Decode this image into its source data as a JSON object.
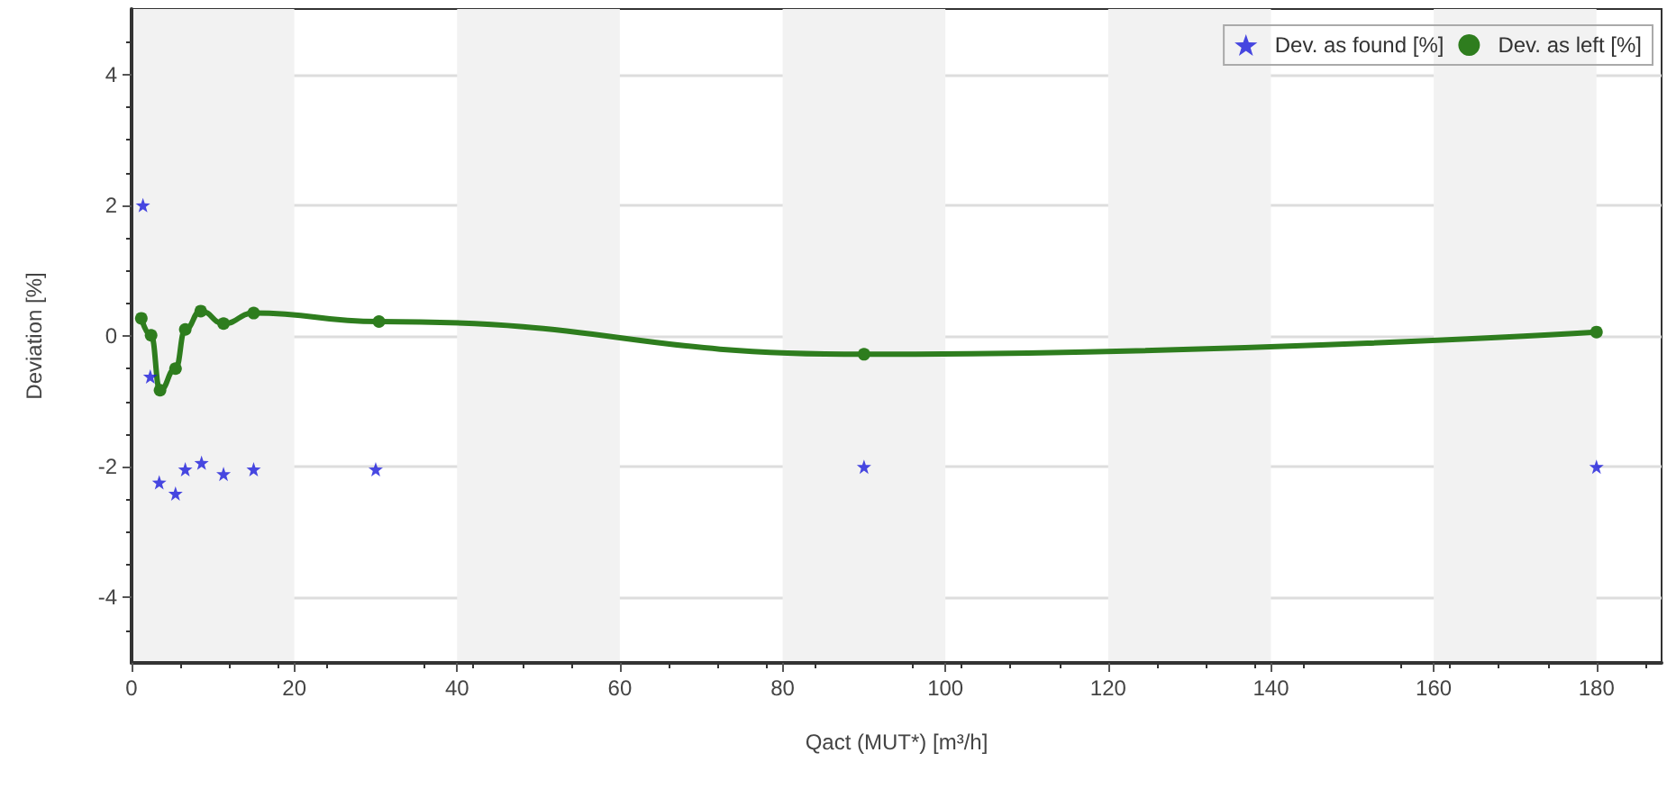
{
  "chart_data": {
    "type": "scatter",
    "xlabel": "Qact (MUT*) [m³/h]",
    "ylabel": "Deviation [%]",
    "xlim": [
      0,
      188
    ],
    "ylim": [
      -5,
      5
    ],
    "xticks": [
      0,
      20,
      40,
      60,
      80,
      100,
      120,
      140,
      160,
      180
    ],
    "yticks": [
      -4,
      -2,
      0,
      2,
      4
    ],
    "grid": "y",
    "legend": "top right",
    "bands": [
      {
        "axis": "x",
        "from": 0,
        "to": 20,
        "color": "#f2f2f2"
      },
      {
        "axis": "x",
        "from": 40,
        "to": 60,
        "color": "#f2f2f2"
      },
      {
        "axis": "x",
        "from": 80,
        "to": 100,
        "color": "#f2f2f2"
      },
      {
        "axis": "x",
        "from": 120,
        "to": 140,
        "color": "#f2f2f2"
      },
      {
        "axis": "x",
        "from": 160,
        "to": 180,
        "color": "#f2f2f2"
      }
    ],
    "series": [
      {
        "name": "Dev. as found [%]",
        "marker": "star",
        "color": "#1a1adb",
        "x": [
          1.4,
          2.3,
          3.4,
          5.4,
          6.6,
          8.6,
          11.3,
          15,
          30,
          90,
          180
        ],
        "values": [
          2.0,
          -0.62,
          -2.24,
          -2.41,
          -2.04,
          -1.94,
          -2.11,
          -2.04,
          -2.04,
          -2.0,
          -2.0
        ]
      },
      {
        "name": "Dev. as left [%]",
        "type": "line",
        "marker": "circle",
        "line_style": "solid",
        "color": "#2e7d1e",
        "x": [
          1.2,
          2.4,
          3.5,
          5.4,
          6.6,
          8.5,
          11.3,
          15,
          30.4,
          90,
          180
        ],
        "values": [
          0.27,
          0.01,
          -0.83,
          -0.5,
          0.1,
          0.38,
          0.19,
          0.35,
          0.22,
          -0.28,
          0.06
        ]
      }
    ]
  }
}
